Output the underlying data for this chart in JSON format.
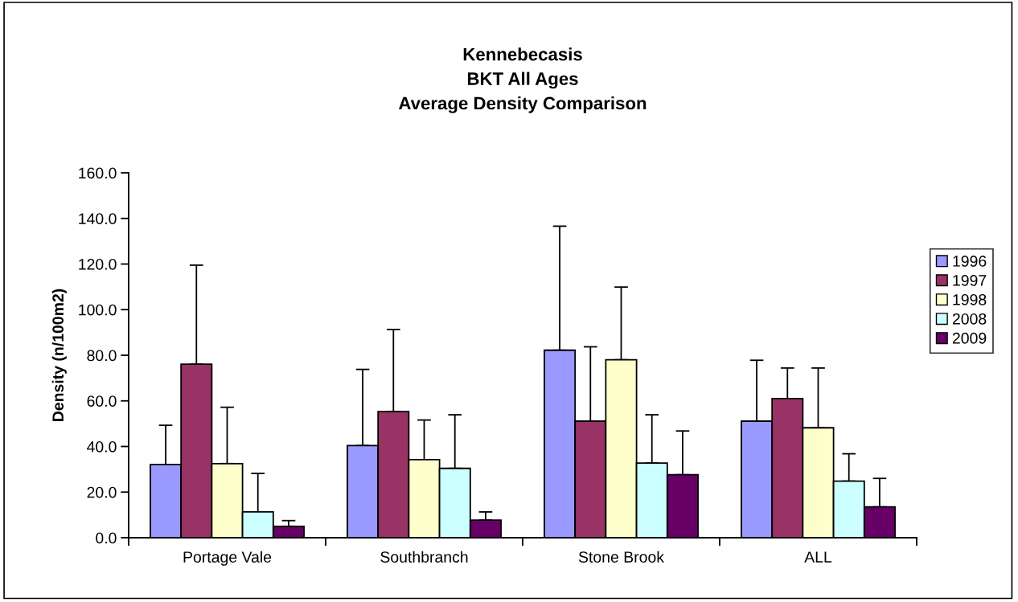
{
  "chart_data": {
    "type": "bar",
    "title": "Kennebecasis\nBKT All Ages\nAverage Density Comparison",
    "ylabel": "Density (n/100m2)",
    "categories": [
      "Portage Vale",
      "Southbranch",
      "Stone Brook",
      "ALL"
    ],
    "series": [
      {
        "name": "1996",
        "color": "#9999ff",
        "values": [
          32.1,
          40.4,
          82.2,
          51.1
        ],
        "errors": [
          [
            32.1,
            49.3
          ],
          [
            40.4,
            73.8
          ],
          [
            82.2,
            136.6
          ],
          [
            51.1,
            77.8
          ]
        ]
      },
      {
        "name": "1997",
        "color": "#993366",
        "values": [
          76.1,
          55.3,
          51.1,
          61.0
        ],
        "errors": [
          [
            76.1,
            119.5
          ],
          [
            55.3,
            91.3
          ],
          [
            51.1,
            83.7
          ],
          [
            61.0,
            74.4
          ]
        ]
      },
      {
        "name": "1998",
        "color": "#ffffcc",
        "values": [
          32.5,
          34.2,
          78.0,
          48.2
        ],
        "errors": [
          [
            32.5,
            57.2
          ],
          [
            34.2,
            51.6
          ],
          [
            78.0,
            109.9
          ],
          [
            48.2,
            74.4
          ]
        ]
      },
      {
        "name": "2008",
        "color": "#ccffff",
        "values": [
          11.3,
          30.4,
          32.7,
          24.8
        ],
        "errors": [
          [
            11.3,
            28.2
          ],
          [
            30.4,
            53.9
          ],
          [
            32.7,
            53.9
          ],
          [
            24.8,
            36.8
          ]
        ]
      },
      {
        "name": "2009",
        "color": "#660066",
        "values": [
          5.0,
          7.7,
          27.6,
          13.5
        ],
        "errors": [
          [
            5.0,
            7.5
          ],
          [
            7.7,
            11.3
          ],
          [
            27.6,
            46.8
          ],
          [
            13.5,
            26.0
          ]
        ]
      }
    ],
    "ylim": [
      0,
      160
    ],
    "yticks": [
      {
        "value": 0,
        "label": "0.0"
      },
      {
        "value": 20,
        "label": "20.0"
      },
      {
        "value": 40,
        "label": "40.0"
      },
      {
        "value": 60,
        "label": "60.0"
      },
      {
        "value": 80,
        "label": "80.0"
      },
      {
        "value": 100,
        "label": "100.0"
      },
      {
        "value": 120,
        "label": "120.0"
      },
      {
        "value": 140,
        "label": "140.0"
      },
      {
        "value": 160,
        "label": "160.0"
      }
    ],
    "grid": false,
    "legend": "right"
  }
}
